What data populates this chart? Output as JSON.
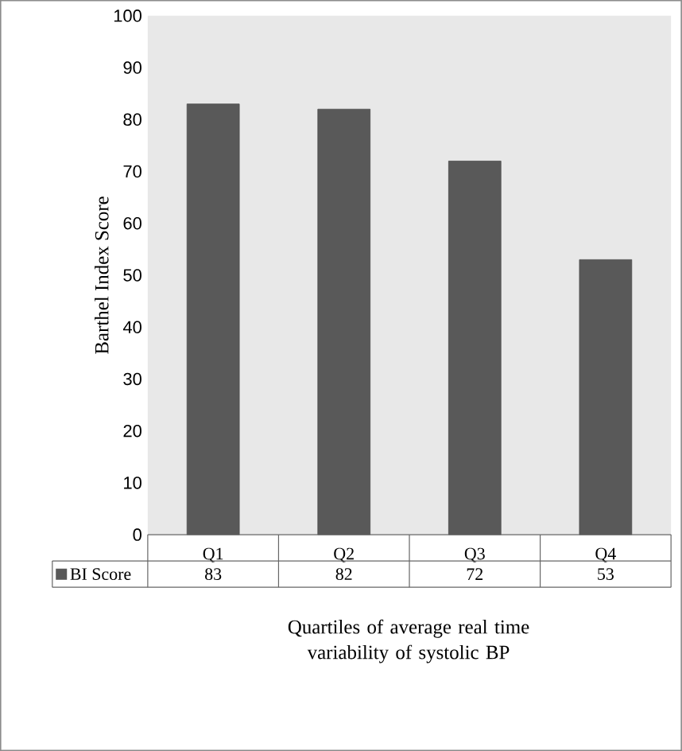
{
  "chart_data": {
    "type": "bar",
    "xlabel": "Quartiles of average real time variability of systolic BP",
    "ylabel": "Barthel Index Score",
    "categories": [
      "Q1",
      "Q2",
      "Q3",
      "Q4"
    ],
    "series": [
      {
        "name": "BI Score",
        "color": "#595959",
        "values": [
          83,
          82,
          72,
          53
        ]
      }
    ],
    "ylim": [
      0,
      100
    ],
    "yticks": [
      0,
      10,
      20,
      30,
      40,
      50,
      60,
      70,
      80,
      90,
      100
    ],
    "data_labels": true
  }
}
